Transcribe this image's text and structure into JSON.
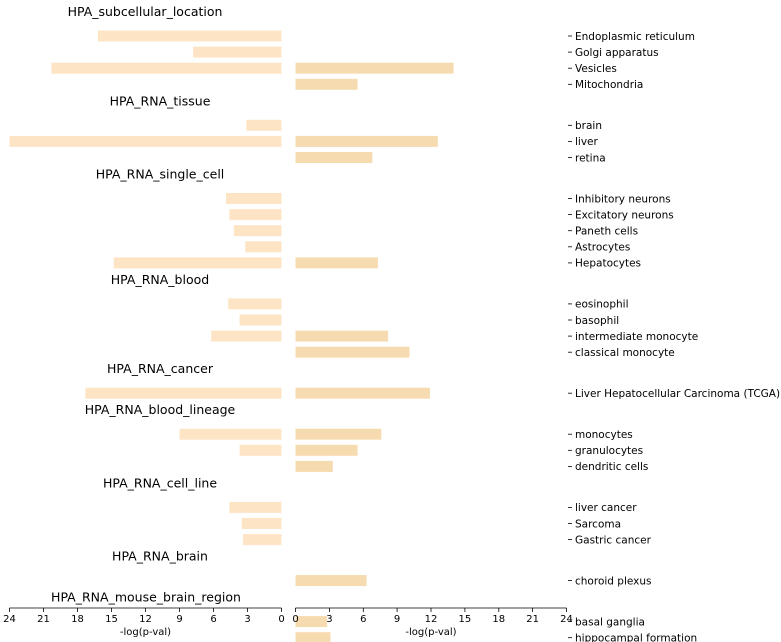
{
  "chart_data": {
    "type": "bar",
    "orientation": "horizontal",
    "layout": "mirrored",
    "left_series_color": "#fde4c4",
    "right_series_color": "#f7dbb0",
    "left_axis": {
      "xlabel": "-log(p-val)",
      "xlim": [
        24,
        0
      ],
      "ticks": [
        24,
        21,
        18,
        15,
        12,
        9,
        6,
        3,
        0
      ]
    },
    "right_axis": {
      "xlabel": "-log(p-val)",
      "xlim": [
        0,
        24
      ],
      "ticks": [
        0,
        3,
        6,
        9,
        12,
        15,
        18,
        21,
        24
      ]
    },
    "groups": [
      {
        "title": "HPA_subcellular_location",
        "items": [
          {
            "label": "Endoplasmic reticulum",
            "left": 16.2,
            "right": 0
          },
          {
            "label": "Golgi apparatus",
            "left": 7.8,
            "right": 0
          },
          {
            "label": "Vesicles",
            "left": 20.3,
            "right": 14.0
          },
          {
            "label": "Mitochondria",
            "left": 0,
            "right": 5.5
          }
        ]
      },
      {
        "title": "HPA_RNA_tissue",
        "items": [
          {
            "label": "brain",
            "left": 3.1,
            "right": 0
          },
          {
            "label": "liver",
            "left": 24.0,
            "right": 12.6
          },
          {
            "label": "retina",
            "left": 0,
            "right": 6.8
          }
        ]
      },
      {
        "title": "HPA_RNA_single_cell",
        "items": [
          {
            "label": "Inhibitory neurons",
            "left": 4.9,
            "right": 0
          },
          {
            "label": "Excitatory neurons",
            "left": 4.6,
            "right": 0
          },
          {
            "label": "Paneth cells",
            "left": 4.2,
            "right": 0
          },
          {
            "label": "Astrocytes",
            "left": 3.2,
            "right": 0
          },
          {
            "label": "Hepatocytes",
            "left": 14.8,
            "right": 7.3
          }
        ]
      },
      {
        "title": "HPA_RNA_blood",
        "items": [
          {
            "label": "eosinophil",
            "left": 4.7,
            "right": 0
          },
          {
            "label": "basophil",
            "left": 3.7,
            "right": 0
          },
          {
            "label": "intermediate monocyte",
            "left": 6.2,
            "right": 8.2
          },
          {
            "label": "classical monocyte",
            "left": 0,
            "right": 10.1
          }
        ]
      },
      {
        "title": "HPA_RNA_cancer",
        "items": [
          {
            "label": "Liver Hepatocellular Carcinoma (TCGA)",
            "left": 17.3,
            "right": 11.9
          }
        ]
      },
      {
        "title": "HPA_RNA_blood_lineage",
        "items": [
          {
            "label": "monocytes",
            "left": 9.0,
            "right": 7.6
          },
          {
            "label": "granulocytes",
            "left": 3.7,
            "right": 5.5
          },
          {
            "label": "dendritic cells",
            "left": 0,
            "right": 3.3
          }
        ]
      },
      {
        "title": "HPA_RNA_cell_line",
        "items": [
          {
            "label": "liver cancer",
            "left": 4.6,
            "right": 0
          },
          {
            "label": "Sarcoma",
            "left": 3.5,
            "right": 0
          },
          {
            "label": "Gastric cancer",
            "left": 3.4,
            "right": 0
          }
        ]
      },
      {
        "title": "HPA_RNA_brain",
        "items": [
          {
            "label": "choroid plexus",
            "left": 0,
            "right": 6.3
          }
        ]
      },
      {
        "title": "HPA_RNA_mouse_brain_region",
        "items": [
          {
            "label": "basal ganglia",
            "left": 0,
            "right": 2.8
          },
          {
            "label": "hippocampal formation",
            "left": 0,
            "right": 3.1
          }
        ]
      }
    ]
  }
}
